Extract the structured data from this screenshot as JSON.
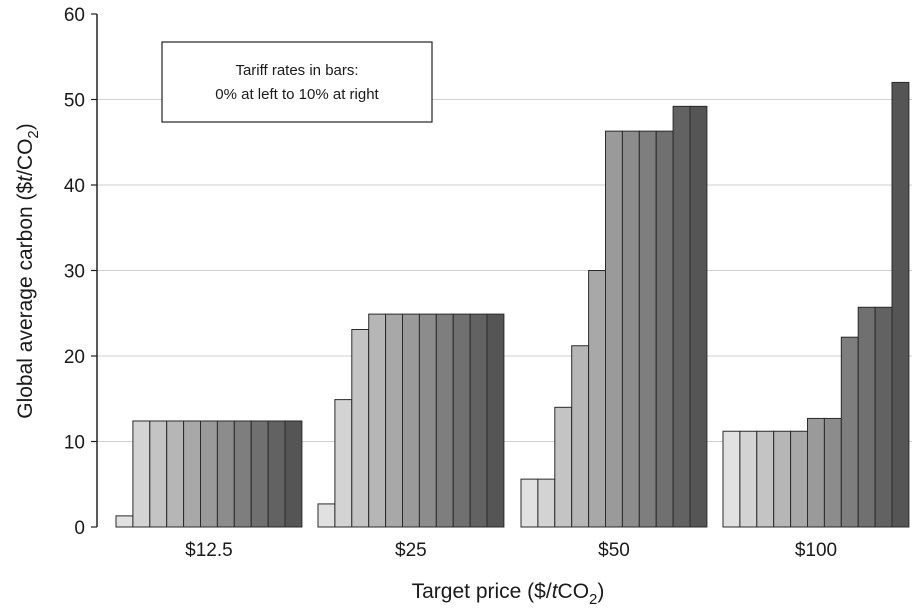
{
  "chart_data": {
    "type": "bar",
    "categories": [
      "$12.5",
      "$25",
      "$50",
      "$100"
    ],
    "tariff_series_count": 11,
    "values_by_category": [
      [
        1.3,
        12.4,
        12.4,
        12.4,
        12.4,
        12.4,
        12.4,
        12.4,
        12.4,
        12.4,
        12.4
      ],
      [
        2.7,
        14.9,
        23.1,
        24.9,
        24.9,
        24.9,
        24.9,
        24.9,
        24.9,
        24.9,
        24.9
      ],
      [
        5.6,
        5.6,
        14.0,
        21.2,
        30.0,
        46.3,
        46.3,
        46.3,
        46.3,
        49.2,
        49.2
      ],
      [
        11.2,
        11.2,
        11.2,
        11.2,
        11.2,
        12.7,
        12.7,
        22.2,
        25.7,
        25.7,
        52.0
      ]
    ],
    "bar_colors": [
      "#e1e1e1",
      "#d3d3d3",
      "#c4c4c4",
      "#b6b6b6",
      "#a8a8a8",
      "#9a9a9a",
      "#8c8c8c",
      "#7e7e7e",
      "#707070",
      "#626262",
      "#555555"
    ],
    "ylim": [
      0,
      60
    ],
    "yticks": [
      0,
      10,
      20,
      30,
      40,
      50,
      60
    ],
    "ylabel_prefix": "Global average carbon (",
    "ylabel_unit_dollar": "$",
    "ylabel_unit_t": "t",
    "ylabel_unit_slash": "/CO",
    "ylabel_sub": "2",
    "ylabel_close": ")",
    "xlabel_prefix": "Target price (",
    "xlabel_unit_dollar": "$/",
    "xlabel_unit_t": "t",
    "xlabel_unit_co": "CO",
    "xlabel_sub": "2",
    "xlabel_close": ")",
    "legend_line1": "Tariff rates in bars:",
    "legend_line2": "0% at left to 10% at right",
    "grid": true
  }
}
